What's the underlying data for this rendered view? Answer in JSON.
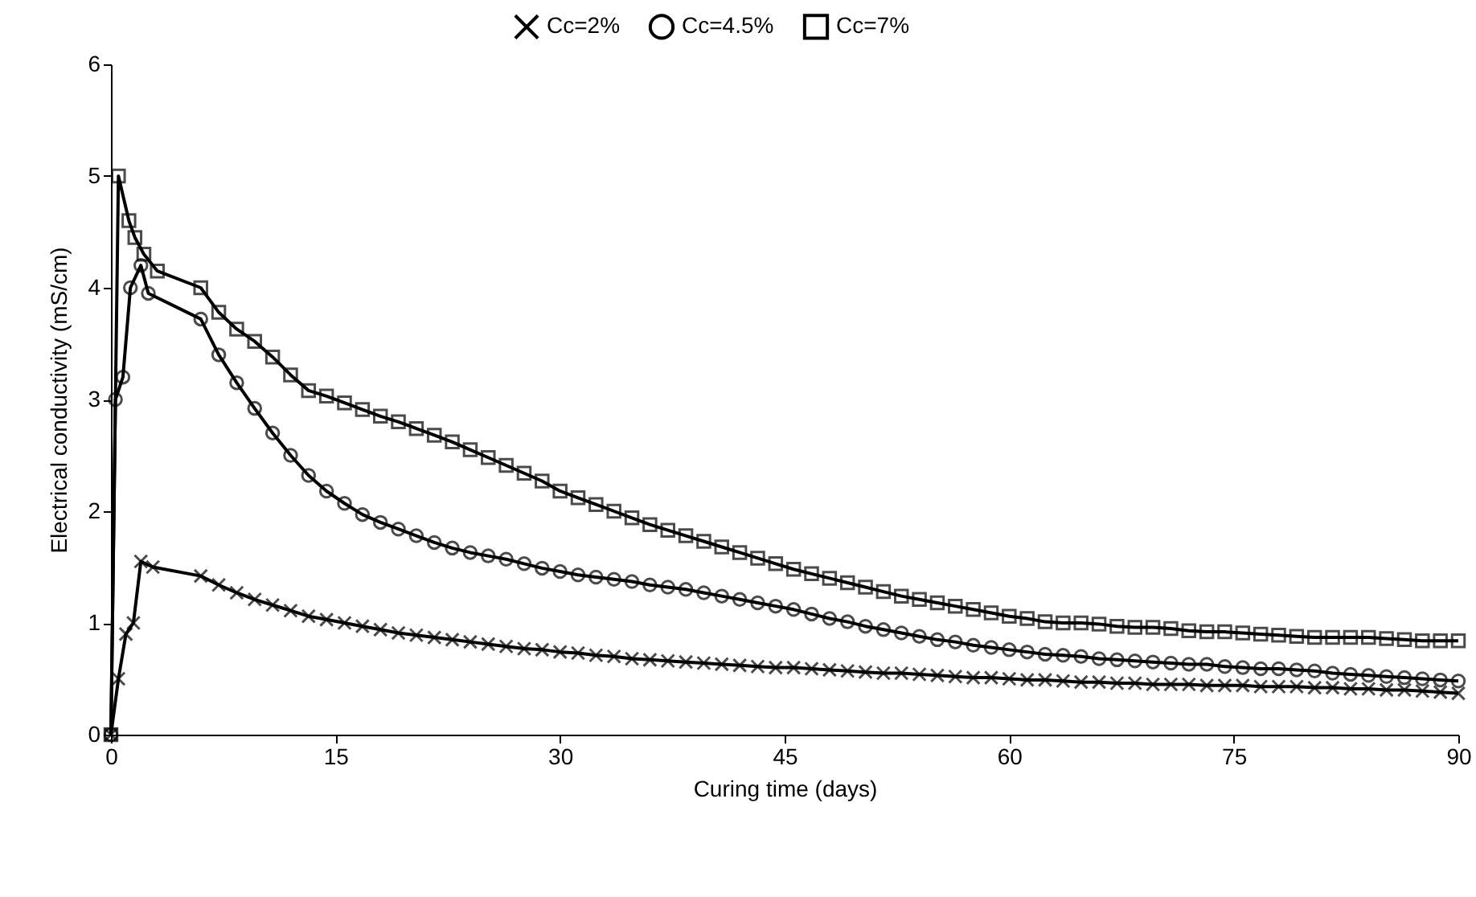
{
  "chart_data": {
    "type": "line",
    "xlabel": "Curing time (days)",
    "ylabel": "Electrical conductivity (mS/cm)",
    "xlim": [
      0,
      90
    ],
    "xticks": [
      0,
      15,
      30,
      45,
      60,
      75,
      90
    ],
    "ylim": [
      0,
      6
    ],
    "yticks": [
      0,
      1,
      2,
      3,
      4,
      5,
      6
    ],
    "grid": false,
    "legend": "top",
    "line_style": "solid",
    "series": [
      {
        "name": "Cc=2%",
        "color": "#000000",
        "marker": "cross",
        "x": [
          0,
          0.5,
          1.0,
          1.5,
          2.0,
          2.8,
          6.0,
          7.2,
          8.4,
          9.6,
          10.8,
          12.0,
          13.2,
          14.4,
          15.6,
          16.8,
          18.0,
          19.2,
          20.4,
          21.6,
          22.8,
          24.0,
          25.2,
          26.4,
          27.6,
          28.8,
          30.0,
          31.2,
          32.4,
          33.6,
          34.8,
          36.0,
          37.2,
          38.4,
          39.6,
          40.8,
          42.0,
          43.2,
          44.4,
          45.6,
          46.8,
          48.0,
          49.2,
          50.4,
          51.6,
          52.8,
          54.0,
          55.2,
          56.4,
          57.6,
          58.8,
          60.0,
          61.2,
          62.4,
          63.6,
          64.8,
          66.0,
          67.2,
          68.4,
          69.6,
          70.8,
          72.0,
          73.2,
          74.4,
          75.6,
          76.8,
          78.0,
          79.2,
          80.4,
          81.6,
          82.8,
          84.0,
          85.2,
          86.4,
          87.6,
          88.8,
          90.0
        ],
        "values": [
          0,
          0.5,
          0.9,
          1.0,
          1.55,
          1.5,
          1.42,
          1.34,
          1.27,
          1.21,
          1.16,
          1.11,
          1.06,
          1.03,
          1.0,
          0.97,
          0.94,
          0.91,
          0.89,
          0.87,
          0.85,
          0.83,
          0.81,
          0.79,
          0.77,
          0.76,
          0.74,
          0.73,
          0.71,
          0.7,
          0.68,
          0.67,
          0.66,
          0.65,
          0.64,
          0.63,
          0.62,
          0.61,
          0.6,
          0.6,
          0.59,
          0.58,
          0.57,
          0.56,
          0.55,
          0.55,
          0.54,
          0.53,
          0.52,
          0.51,
          0.51,
          0.5,
          0.49,
          0.49,
          0.48,
          0.47,
          0.47,
          0.46,
          0.46,
          0.45,
          0.45,
          0.45,
          0.44,
          0.44,
          0.44,
          0.43,
          0.43,
          0.43,
          0.42,
          0.42,
          0.41,
          0.41,
          0.4,
          0.4,
          0.39,
          0.38,
          0.37
        ]
      },
      {
        "name": "Cc=4.5%",
        "color": "#000000",
        "marker": "circle",
        "x": [
          0,
          0.3,
          0.8,
          1.3,
          2.0,
          2.5,
          6.0,
          7.2,
          8.4,
          9.6,
          10.8,
          12.0,
          13.2,
          14.4,
          15.6,
          16.8,
          18.0,
          19.2,
          20.4,
          21.6,
          22.8,
          24.0,
          25.2,
          26.4,
          27.6,
          28.8,
          30.0,
          31.2,
          32.4,
          33.6,
          34.8,
          36.0,
          37.2,
          38.4,
          39.6,
          40.8,
          42.0,
          43.2,
          44.4,
          45.6,
          46.8,
          48.0,
          49.2,
          50.4,
          51.6,
          52.8,
          54.0,
          55.2,
          56.4,
          57.6,
          58.8,
          60.0,
          61.2,
          62.4,
          63.6,
          64.8,
          66.0,
          67.2,
          68.4,
          69.6,
          70.8,
          72.0,
          73.2,
          74.4,
          75.6,
          76.8,
          78.0,
          79.2,
          80.4,
          81.6,
          82.8,
          84.0,
          85.2,
          86.4,
          87.6,
          88.8,
          90.0
        ],
        "values": [
          0,
          3.0,
          3.2,
          4.0,
          4.2,
          3.95,
          3.72,
          3.4,
          3.15,
          2.92,
          2.7,
          2.5,
          2.32,
          2.18,
          2.07,
          1.97,
          1.9,
          1.84,
          1.78,
          1.72,
          1.67,
          1.63,
          1.6,
          1.57,
          1.53,
          1.49,
          1.46,
          1.43,
          1.41,
          1.39,
          1.37,
          1.34,
          1.32,
          1.3,
          1.27,
          1.24,
          1.21,
          1.18,
          1.15,
          1.12,
          1.08,
          1.04,
          1.01,
          0.97,
          0.94,
          0.91,
          0.88,
          0.85,
          0.83,
          0.8,
          0.78,
          0.76,
          0.74,
          0.72,
          0.71,
          0.7,
          0.68,
          0.67,
          0.66,
          0.65,
          0.64,
          0.63,
          0.63,
          0.61,
          0.6,
          0.59,
          0.59,
          0.58,
          0.57,
          0.55,
          0.54,
          0.53,
          0.52,
          0.51,
          0.5,
          0.49,
          0.48
        ]
      },
      {
        "name": "Cc=7%",
        "color": "#000000",
        "marker": "square",
        "x": [
          0,
          0.5,
          1.2,
          1.6,
          2.2,
          3.1,
          6.0,
          7.2,
          8.4,
          9.6,
          10.8,
          12.0,
          13.2,
          14.4,
          15.6,
          16.8,
          18.0,
          19.2,
          20.4,
          21.6,
          22.8,
          24.0,
          25.2,
          26.4,
          27.6,
          28.8,
          30.0,
          31.2,
          32.4,
          33.6,
          34.8,
          36.0,
          37.2,
          38.4,
          39.6,
          40.8,
          42.0,
          43.2,
          44.4,
          45.6,
          46.8,
          48.0,
          49.2,
          50.4,
          51.6,
          52.8,
          54.0,
          55.2,
          56.4,
          57.6,
          58.8,
          60.0,
          61.2,
          62.4,
          63.6,
          64.8,
          66.0,
          67.2,
          68.4,
          69.6,
          70.8,
          72.0,
          73.2,
          74.4,
          75.6,
          76.8,
          78.0,
          79.2,
          80.4,
          81.6,
          82.8,
          84.0,
          85.2,
          86.4,
          87.6,
          88.8,
          90.0
        ],
        "values": [
          0,
          5.0,
          4.6,
          4.45,
          4.3,
          4.15,
          4.0,
          3.78,
          3.63,
          3.52,
          3.38,
          3.22,
          3.08,
          3.03,
          2.97,
          2.91,
          2.85,
          2.8,
          2.74,
          2.68,
          2.62,
          2.55,
          2.48,
          2.41,
          2.34,
          2.27,
          2.18,
          2.12,
          2.06,
          2.0,
          1.94,
          1.88,
          1.83,
          1.78,
          1.73,
          1.68,
          1.63,
          1.58,
          1.53,
          1.48,
          1.44,
          1.4,
          1.36,
          1.32,
          1.28,
          1.24,
          1.21,
          1.18,
          1.15,
          1.12,
          1.09,
          1.06,
          1.04,
          1.01,
          1.0,
          1.0,
          0.99,
          0.97,
          0.96,
          0.96,
          0.95,
          0.93,
          0.92,
          0.92,
          0.91,
          0.9,
          0.89,
          0.88,
          0.87,
          0.87,
          0.87,
          0.87,
          0.86,
          0.85,
          0.84,
          0.84,
          0.84
        ]
      }
    ]
  }
}
